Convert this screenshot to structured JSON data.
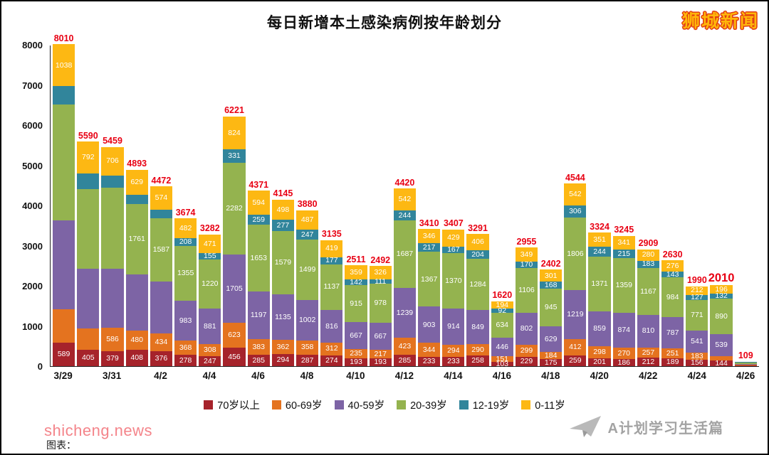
{
  "page": {
    "title": "每日新增本土感染病例按年龄划分",
    "brand": "狮城新闻",
    "watermark": "shicheng.news",
    "credit": "图表：",
    "footer_logo": "A计划学习生活篇"
  },
  "chart_data": {
    "type": "bar",
    "stacked": true,
    "title": "每日新增本土感染病例按年龄划分",
    "xlabel": "",
    "ylabel": "",
    "ylim": [
      0,
      8000
    ],
    "y_ticks": [
      0,
      1000,
      2000,
      3000,
      4000,
      5000,
      6000,
      7000,
      8000
    ],
    "grid": false,
    "legend_position": "bottom",
    "total_label_color": "#e80013",
    "series": [
      {
        "name": "70岁以上",
        "color": "#a6232b"
      },
      {
        "name": "60-69岁",
        "color": "#e4731f"
      },
      {
        "name": "40-59岁",
        "color": "#7d64a5"
      },
      {
        "name": "20-39岁",
        "color": "#94b34f"
      },
      {
        "name": "12-19岁",
        "color": "#31859b"
      },
      {
        "name": "0-11岁",
        "color": "#fdb813"
      }
    ],
    "bars": [
      {
        "date": "3/29",
        "tick": true,
        "total": 8010,
        "values": [
          589,
          833,
          2200,
          2900,
          450,
          1038
        ],
        "labels": [
          1,
          0,
          0,
          0,
          0,
          1
        ]
      },
      {
        "date": "3/30",
        "tick": false,
        "total": 5590,
        "values": [
          405,
          530,
          1490,
          1980,
          393,
          792
        ],
        "labels": [
          1,
          0,
          0,
          0,
          0,
          1
        ]
      },
      {
        "date": "3/31",
        "tick": true,
        "total": 5459,
        "values": [
          379,
          586,
          1460,
          2020,
          308,
          706
        ],
        "labels": [
          1,
          1,
          0,
          0,
          0,
          1
        ]
      },
      {
        "date": "4/1",
        "tick": false,
        "total": 4893,
        "values": [
          408,
          480,
          1390,
          1761,
          225,
          629
        ],
        "labels": [
          1,
          1,
          0,
          1,
          0,
          1
        ]
      },
      {
        "date": "4/2",
        "tick": true,
        "total": 4472,
        "values": [
          376,
          434,
          1290,
          1587,
          211,
          574
        ],
        "labels": [
          1,
          1,
          0,
          1,
          0,
          1
        ]
      },
      {
        "date": "4/3",
        "tick": false,
        "total": 3674,
        "values": [
          278,
          368,
          983,
          1355,
          208,
          482
        ],
        "labels": [
          1,
          1,
          1,
          1,
          1,
          1
        ]
      },
      {
        "date": "4/4",
        "tick": true,
        "total": 3282,
        "values": [
          247,
          308,
          881,
          1220,
          155,
          471
        ],
        "labels": [
          1,
          1,
          1,
          1,
          1,
          1
        ]
      },
      {
        "date": "4/5",
        "tick": false,
        "total": 6221,
        "values": [
          456,
          623,
          1705,
          2282,
          331,
          824
        ],
        "labels": [
          1,
          1,
          1,
          1,
          1,
          1
        ]
      },
      {
        "date": "4/6",
        "tick": true,
        "total": 4371,
        "values": [
          285,
          383,
          1197,
          1653,
          259,
          594
        ],
        "labels": [
          1,
          1,
          1,
          1,
          1,
          1
        ]
      },
      {
        "date": "4/7",
        "tick": false,
        "total": 4145,
        "values": [
          294,
          362,
          1135,
          1579,
          277,
          498
        ],
        "labels": [
          1,
          1,
          1,
          1,
          1,
          1
        ]
      },
      {
        "date": "4/8",
        "tick": true,
        "total": 3880,
        "values": [
          287,
          358,
          1002,
          1499,
          247,
          487
        ],
        "labels": [
          1,
          1,
          1,
          1,
          1,
          1
        ]
      },
      {
        "date": "4/9",
        "tick": false,
        "total": 3135,
        "values": [
          274,
          312,
          816,
          1137,
          177,
          419
        ],
        "labels": [
          1,
          1,
          1,
          1,
          1,
          1
        ]
      },
      {
        "date": "4/10",
        "tick": true,
        "total": 2511,
        "values": [
          193,
          235,
          667,
          915,
          142,
          359
        ],
        "labels": [
          1,
          1,
          1,
          1,
          1,
          1
        ]
      },
      {
        "date": "4/11",
        "tick": false,
        "total": 2492,
        "values": [
          193,
          217,
          667,
          978,
          111,
          326
        ],
        "labels": [
          1,
          1,
          1,
          1,
          1,
          1
        ]
      },
      {
        "date": "4/12",
        "tick": true,
        "total": 4420,
        "values": [
          285,
          423,
          1239,
          1687,
          244,
          542
        ],
        "labels": [
          1,
          1,
          1,
          1,
          1,
          1
        ]
      },
      {
        "date": "4/13",
        "tick": false,
        "total": 3410,
        "values": [
          233,
          344,
          903,
          1367,
          217,
          346
        ],
        "labels": [
          1,
          1,
          1,
          1,
          1,
          1
        ]
      },
      {
        "date": "4/14",
        "tick": true,
        "total": 3407,
        "values": [
          233,
          294,
          914,
          1370,
          167,
          429
        ],
        "labels": [
          1,
          1,
          1,
          1,
          1,
          1
        ]
      },
      {
        "date": "4/15",
        "tick": false,
        "total": 3291,
        "values": [
          258,
          290,
          849,
          1284,
          204,
          406
        ],
        "labels": [
          1,
          1,
          1,
          1,
          1,
          1
        ]
      },
      {
        "date": "4/16",
        "tick": true,
        "total": 1620,
        "values": [
          103,
          151,
          446,
          634,
          92,
          194
        ],
        "labels": [
          1,
          1,
          1,
          1,
          1,
          1
        ]
      },
      {
        "date": "4/17",
        "tick": false,
        "total": 2955,
        "values": [
          229,
          299,
          802,
          1106,
          170,
          349
        ],
        "labels": [
          1,
          1,
          1,
          1,
          1,
          1
        ]
      },
      {
        "date": "4/18",
        "tick": true,
        "total": 2402,
        "values": [
          175,
          184,
          629,
          945,
          168,
          301
        ],
        "labels": [
          1,
          1,
          1,
          1,
          1,
          1
        ]
      },
      {
        "date": "4/19",
        "tick": false,
        "total": 4544,
        "values": [
          259,
          412,
          1219,
          1806,
          306,
          542
        ],
        "labels": [
          1,
          1,
          1,
          1,
          1,
          1
        ]
      },
      {
        "date": "4/20",
        "tick": true,
        "total": 3324,
        "values": [
          201,
          298,
          859,
          1371,
          244,
          351
        ],
        "labels": [
          1,
          1,
          1,
          1,
          1,
          1
        ]
      },
      {
        "date": "4/21",
        "tick": false,
        "total": 3245,
        "values": [
          186,
          270,
          874,
          1359,
          215,
          341
        ],
        "labels": [
          1,
          1,
          1,
          1,
          1,
          1
        ]
      },
      {
        "date": "4/22",
        "tick": true,
        "total": 2909,
        "values": [
          212,
          257,
          810,
          1167,
          183,
          280
        ],
        "labels": [
          1,
          1,
          1,
          1,
          1,
          1
        ]
      },
      {
        "date": "4/23",
        "tick": false,
        "total": 2630,
        "values": [
          189,
          251,
          787,
          984,
          143,
          276
        ],
        "labels": [
          1,
          1,
          1,
          1,
          1,
          1
        ]
      },
      {
        "date": "4/24",
        "tick": true,
        "total": 1990,
        "values": [
          156,
          183,
          541,
          771,
          127,
          212
        ],
        "labels": [
          1,
          1,
          1,
          1,
          1,
          1
        ]
      },
      {
        "date": "4/25",
        "tick": false,
        "total": 2010,
        "big": true,
        "values": [
          144,
          109,
          539,
          890,
          132,
          196
        ],
        "labels": [
          1,
          0,
          1,
          1,
          1,
          1
        ]
      },
      {
        "date": "4/26",
        "tick": true,
        "total": 109,
        "values": [
          12,
          15,
          30,
          38,
          6,
          8
        ],
        "labels": [
          0,
          0,
          0,
          0,
          0,
          0
        ]
      }
    ]
  }
}
